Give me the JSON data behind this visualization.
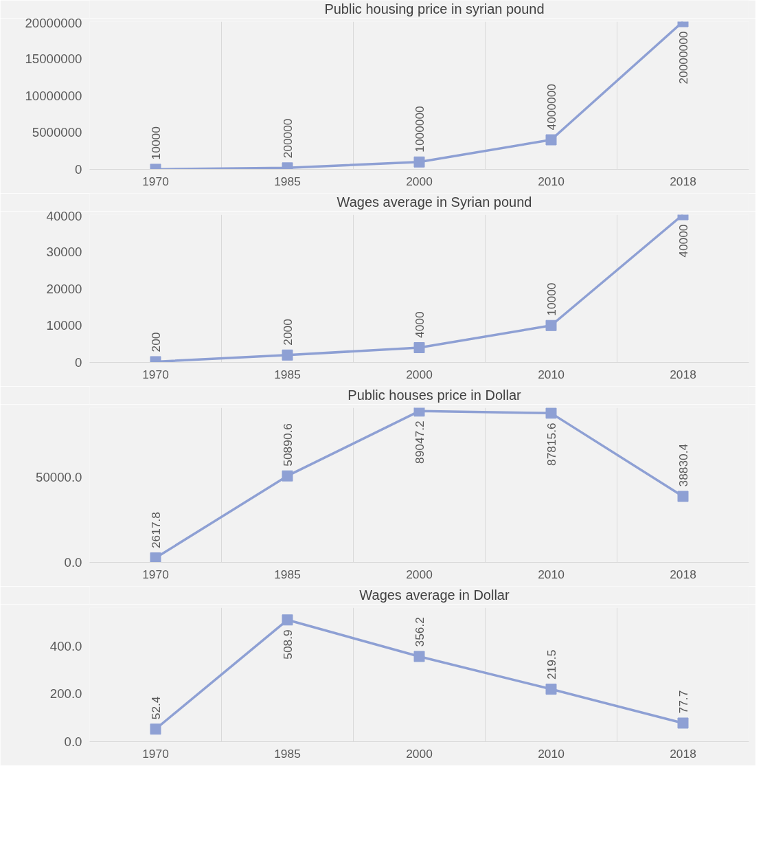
{
  "chart_data": [
    {
      "type": "line",
      "categories": [
        "1970",
        "1985",
        "2000",
        "2010",
        "2018"
      ],
      "series": [
        {
          "name": "Public housing price in syrian pound",
          "color": "#8ea0d4",
          "values": [
            10000,
            200000,
            1000000,
            4000000,
            20000000
          ]
        }
      ],
      "ylim": [
        0,
        20000000
      ],
      "yticks": [
        0,
        5000000,
        10000000,
        15000000,
        20000000
      ],
      "grid": "x",
      "legend": "top",
      "marker": "square",
      "line_style": "solid",
      "data_labels": true
    },
    {
      "type": "line",
      "categories": [
        "1970",
        "1985",
        "2000",
        "2010",
        "2018"
      ],
      "series": [
        {
          "name": "Wages average in Syrian pound",
          "color": "#8ea0d4",
          "values": [
            200,
            2000,
            4000,
            10000,
            40000
          ]
        }
      ],
      "ylim": [
        0,
        40000
      ],
      "yticks": [
        0,
        10000,
        20000,
        30000,
        40000
      ],
      "grid": "x",
      "legend": "top",
      "marker": "square",
      "line_style": "solid",
      "data_labels": true
    },
    {
      "type": "line",
      "categories": [
        "1970",
        "1985",
        "2000",
        "2010",
        "2018"
      ],
      "series": [
        {
          "name": "Public houses price in Dollar",
          "color": "#8ea0d4",
          "values": [
            2617.8,
            50890.6,
            89047.2,
            87815.6,
            38830.4
          ]
        }
      ],
      "ylim": [
        0,
        91000
      ],
      "yticks": [
        {
          "value": 0,
          "label": "0.0"
        },
        {
          "value": 50000,
          "label": "50000.0"
        }
      ],
      "grid": "x",
      "legend": "top",
      "marker": "square",
      "line_style": "solid",
      "data_labels": true
    },
    {
      "type": "line",
      "categories": [
        "1970",
        "1985",
        "2000",
        "2010",
        "2018"
      ],
      "series": [
        {
          "name": "Wages average in Dollar",
          "color": "#8ea0d4",
          "values": [
            52.4,
            508.9,
            356.2,
            219.5,
            77.7
          ]
        }
      ],
      "ylim": [
        0,
        560
      ],
      "yticks": [
        {
          "value": 0,
          "label": "0.0"
        },
        {
          "value": 200,
          "label": "200.0"
        },
        {
          "value": 400,
          "label": "400.0"
        }
      ],
      "grid": "x",
      "legend": "top",
      "marker": "square",
      "line_style": "solid",
      "data_labels": true
    }
  ]
}
